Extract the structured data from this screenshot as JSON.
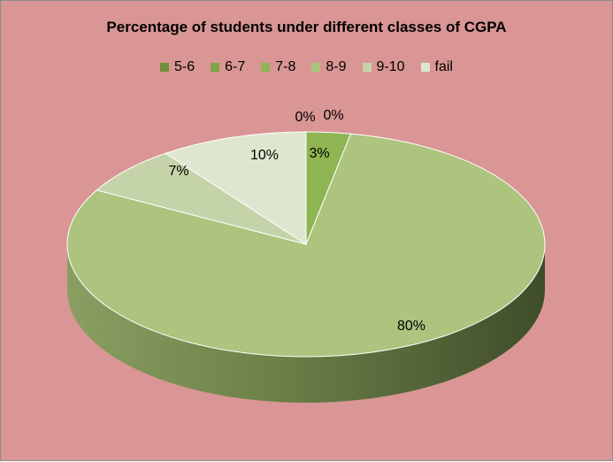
{
  "chart_data": {
    "type": "pie",
    "title": "Percentage of students under different classes of CGPA",
    "legend_position": "top",
    "slices": [
      {
        "label": "5-6",
        "value": 0,
        "display": "0%",
        "color": "#6f8f3c"
      },
      {
        "label": "6-7",
        "value": 0,
        "display": "0%",
        "color": "#7ea346"
      },
      {
        "label": "7-8",
        "value": 3,
        "display": "3%",
        "color": "#8fb553"
      },
      {
        "label": "8-9",
        "value": 80,
        "display": "80%",
        "color": "#acc47e"
      },
      {
        "label": "9-10",
        "value": 7,
        "display": "7%",
        "color": "#c5d4a8"
      },
      {
        "label": "fail",
        "value": 10,
        "display": "10%",
        "color": "#dfe6cf"
      }
    ]
  }
}
